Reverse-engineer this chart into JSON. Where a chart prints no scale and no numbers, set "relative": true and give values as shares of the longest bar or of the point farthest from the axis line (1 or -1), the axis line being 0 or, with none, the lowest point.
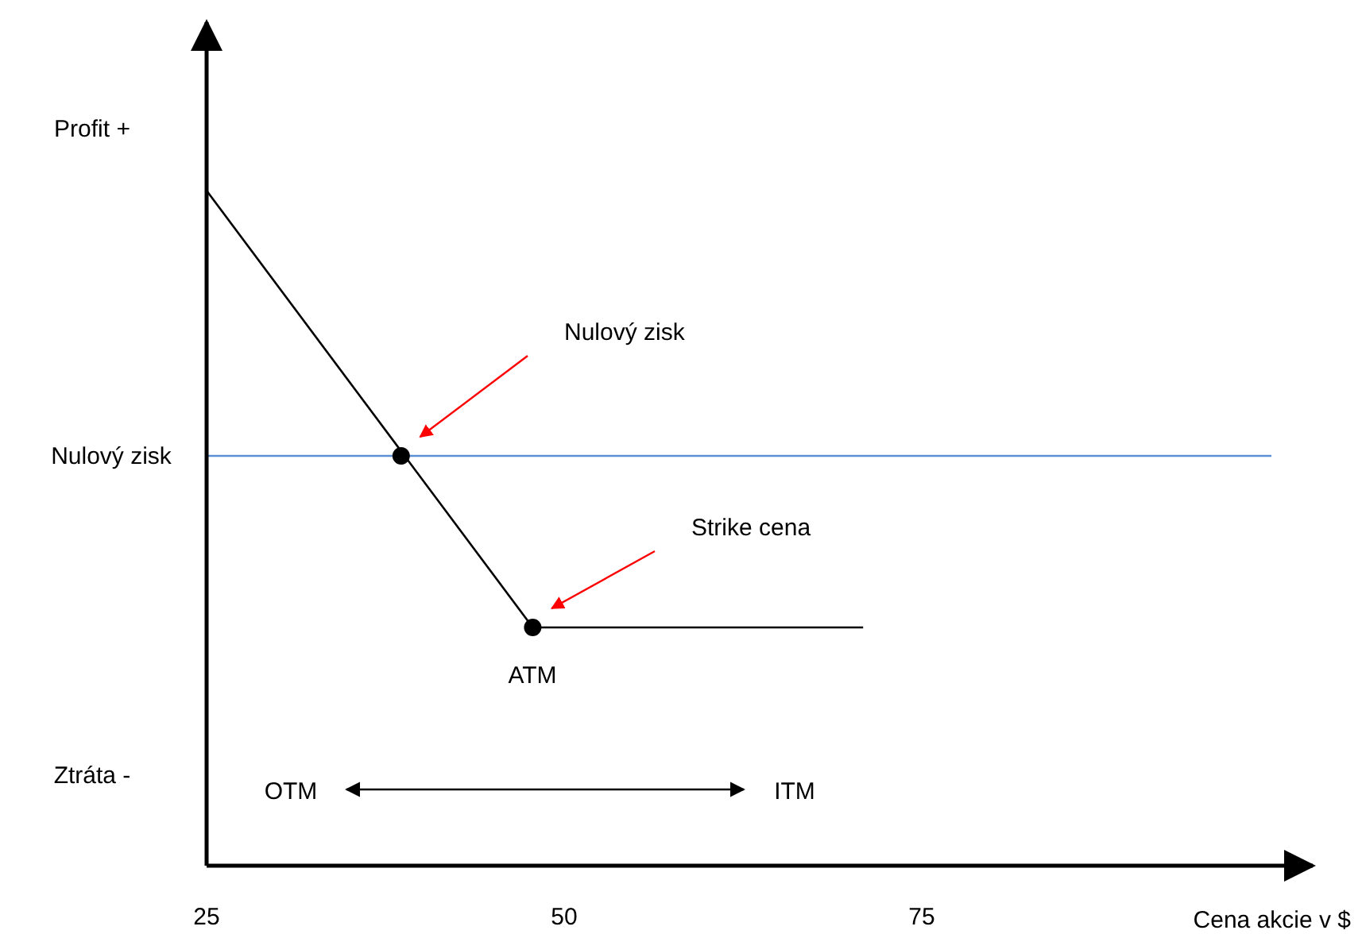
{
  "chart_data": {
    "type": "line",
    "xlabel": "Cena akcie v $",
    "xlim": [
      25,
      102
    ],
    "xticks": [
      25,
      50,
      75
    ],
    "relative": true,
    "grid": false,
    "tick_labels": "x",
    "series": [
      {
        "color": "#000000",
        "marker": "none",
        "x": [
          25,
          47.8,
          70.9
        ],
        "values": [
          1,
          0.353,
          0.353
        ]
      },
      {
        "type": "scatter",
        "color": "#000000",
        "marker": "circle",
        "x": [
          38.6,
          47.8
        ],
        "values": [
          0.607,
          0.353
        ]
      }
    ],
    "ref_lines": [
      {
        "axis": "y",
        "value": 0.607,
        "label": "Nulový zisk",
        "color": "#5b8fd6"
      }
    ],
    "annotations": [
      "Profit +",
      "Nulový zisk",
      "Strike cena",
      "ATM",
      "Ztráta -",
      "OTM",
      "ITM"
    ]
  }
}
